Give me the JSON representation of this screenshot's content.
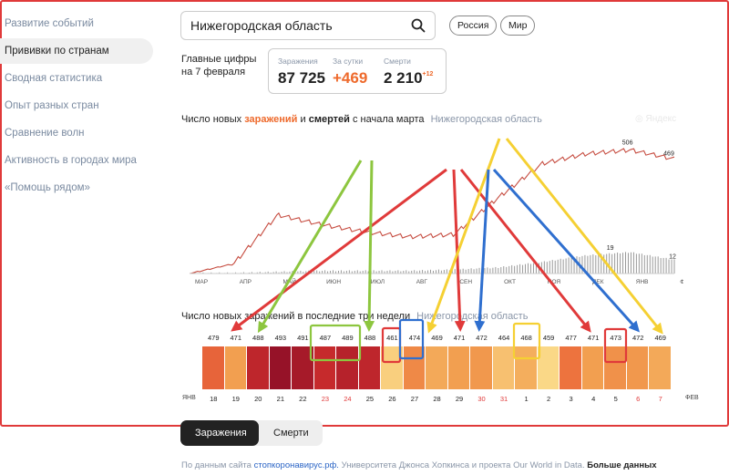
{
  "sidebar": {
    "items": [
      {
        "label": "Развитие событий",
        "active": false
      },
      {
        "label": "Прививки по странам",
        "active": true
      },
      {
        "label": "Сводная статистика",
        "active": false
      },
      {
        "label": "Опыт разных стран",
        "active": false
      },
      {
        "label": "Сравнение волн",
        "active": false
      },
      {
        "label": "Активность в городах мира",
        "active": false
      },
      {
        "label": "«Помощь рядом»",
        "active": false
      }
    ]
  },
  "search": {
    "value": "Нижегородская область",
    "icon": "search-icon"
  },
  "scope_buttons": {
    "russia": "Россия",
    "world": "Мир"
  },
  "headline": {
    "line1": "Главные цифры",
    "line2": "на 7 февраля"
  },
  "stats": {
    "infections": {
      "label": "Заражения",
      "value": "87 725"
    },
    "daily": {
      "label": "За сутки",
      "value": "+469"
    },
    "deaths": {
      "label": "Смерти",
      "value": "2 210",
      "delta": "+12"
    }
  },
  "line_chart_title": {
    "prefix": "Число новых",
    "infections": "заражений",
    "mid": "и",
    "deaths": "смертей",
    "suffix": "с начала марта",
    "region": "Нижегородская область"
  },
  "watermark": "Яндекс",
  "chart_data": [
    {
      "type": "line",
      "title": "Число новых заражений и смертей с начала марта",
      "x": [
        "МАР",
        "АПР",
        "МАЙ",
        "ИЮН",
        "ИЮЛ",
        "АВГ",
        "СЕН",
        "ОКТ",
        "НОЯ",
        "ДЕК",
        "ЯНВ",
        "ФЕВ"
      ],
      "series": [
        {
          "name": "заражений",
          "values": [
            0,
            40,
            240,
            200,
            170,
            150,
            160,
            310,
            450,
            490,
            506,
            469
          ],
          "peak_label": "506",
          "last_label": "469"
        },
        {
          "name": "смертей",
          "values": [
            0,
            0,
            1,
            2,
            2,
            2,
            3,
            5,
            10,
            16,
            19,
            12
          ],
          "peak_label": "19",
          "last_label": "12"
        }
      ],
      "x_tick_labels": [
        "МАР",
        "АПР",
        "МАЙ",
        "ИЮН",
        "ИЮЛ",
        "АВГ",
        "СЕН",
        "ОКТ",
        "НОЯ",
        "ДЕК",
        "ЯНВ",
        "ФЕВ"
      ],
      "colors": {
        "infections": "#c0392b",
        "deaths": "#888888"
      }
    },
    {
      "type": "heatmap",
      "title": "Число новых заражений в последние три недели",
      "region": "Нижегородская область",
      "days": [
        "18",
        "19",
        "20",
        "21",
        "22",
        "23",
        "24",
        "25",
        "26",
        "27",
        "28",
        "29",
        "30",
        "31",
        "1",
        "2",
        "3",
        "4",
        "5",
        "6",
        "7"
      ],
      "values": [
        479,
        471,
        488,
        493,
        491,
        487,
        489,
        488,
        461,
        474,
        469,
        471,
        472,
        464,
        468,
        459,
        477,
        471,
        473,
        472,
        469
      ],
      "weekend_days": [
        "23",
        "24",
        "30",
        "31",
        "6",
        "7"
      ],
      "edge_labels": {
        "start": "ЯНВ",
        "end": "ФЕВ"
      }
    }
  ],
  "heatmap_title": {
    "text": "Число новых заражений в последние три недели",
    "region": "Нижегородская область"
  },
  "tabs": {
    "infections": "Заражения",
    "deaths": "Смерти"
  },
  "footer": {
    "prefix": "По данным сайта",
    "link1": "стопкоронавирус.рф.",
    "middle": "Университета Джонса Хопкинса и  проекта Our World in Data.",
    "more": "Больше данных"
  },
  "colors": {
    "accent": "#ee6a2c",
    "frame": "#e03a3a",
    "arrow_red": "#e03a3a",
    "arrow_green": "#8dc63f",
    "arrow_yellow": "#f5d033",
    "arrow_blue": "#2f6fcf"
  }
}
